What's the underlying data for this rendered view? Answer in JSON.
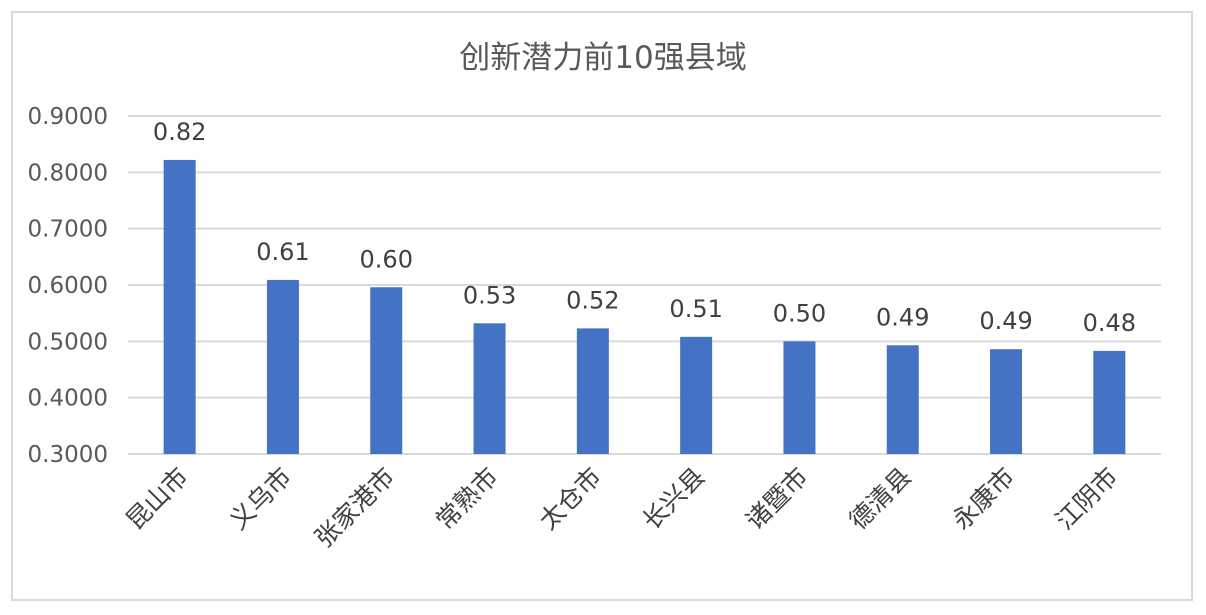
{
  "chart_data": {
    "type": "bar",
    "title": "创新潜力前10强县域",
    "xlabel": "",
    "ylabel": "",
    "categories": [
      "昆山市",
      "义乌市",
      "张家港市",
      "常熟市",
      "太仓市",
      "长兴县",
      "诸暨市",
      "德清县",
      "永康市",
      "江阴市"
    ],
    "values": [
      0.822,
      0.609,
      0.596,
      0.532,
      0.523,
      0.508,
      0.5,
      0.493,
      0.486,
      0.483
    ],
    "data_labels": [
      "0.82",
      "0.61",
      "0.60",
      "0.53",
      "0.52",
      "0.51",
      "0.50",
      "0.49",
      "0.49",
      "0.48"
    ],
    "ylim": [
      0.3,
      0.9
    ],
    "yticks": [
      "0.3000",
      "0.4000",
      "0.5000",
      "0.6000",
      "0.7000",
      "0.8000",
      "0.9000"
    ],
    "grid": true,
    "legend": "none",
    "bar_color": "#4472c4"
  }
}
